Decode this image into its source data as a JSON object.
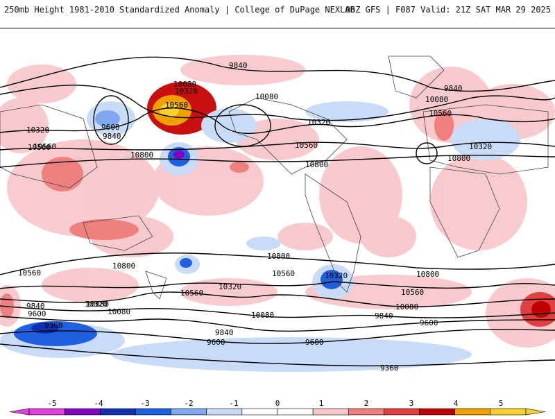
{
  "header": {
    "title": "250mb Height 1981-2010 Standardized Anomaly | College of DuPage NEXLAB",
    "model_info": "06Z GFS | F087 Valid: 21Z SAT MAR 29 2025"
  },
  "contours": {
    "labels": [
      "9840",
      "10080",
      "10320",
      "10560",
      "9600",
      "10560",
      "10320",
      "9840",
      "10800",
      "10080",
      "10320",
      "10560",
      "10080",
      "10800",
      "9840",
      "10320",
      "10560",
      "10800",
      "10560",
      "10800",
      "10320",
      "10560",
      "10320",
      "10800",
      "10560",
      "10560",
      "10080",
      "9840",
      "9600",
      "9360",
      "10320",
      "10080",
      "9840",
      "9600",
      "10080",
      "9840",
      "9600",
      "9360",
      "10560",
      "10800",
      "10080",
      "9600"
    ]
  },
  "colorbar": {
    "ticks": [
      "-5",
      "-4",
      "-3",
      "-2",
      "-1",
      "0",
      "1",
      "2",
      "3",
      "4",
      "5"
    ],
    "colors": [
      "#e040e0",
      "#8000c0",
      "#1030b0",
      "#2060e0",
      "#80a8f0",
      "#c8dcf8",
      "#ffffff",
      "#ffffff",
      "#f8c8c8",
      "#f08080",
      "#e04040",
      "#c00000",
      "#f0a000",
      "#f8d030"
    ]
  }
}
